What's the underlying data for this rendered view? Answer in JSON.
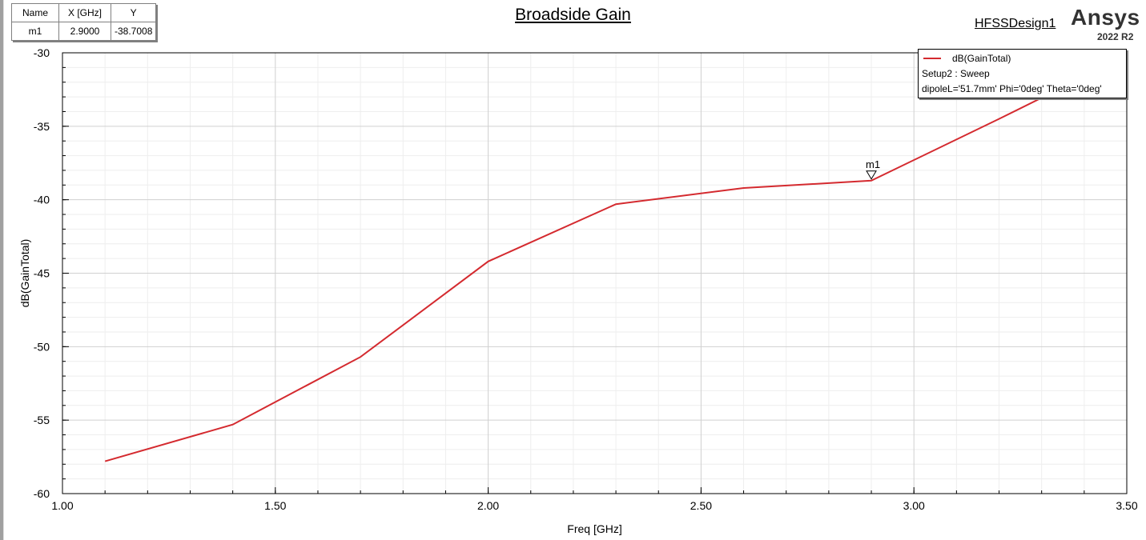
{
  "marker_table": {
    "headers": [
      "Name",
      "X [GHz]",
      "Y"
    ],
    "rows": [
      [
        "m1",
        "2.9000",
        "-38.7008"
      ]
    ]
  },
  "title": "Broadside Gain",
  "design_name": "HFSSDesign1",
  "brand": "Ansys",
  "version": "2022 R2",
  "legend": {
    "series": "dB(GainTotal)",
    "setup": "Setup2 : Sweep",
    "variables": "dipoleL='51.7mm' Phi='0deg' Theta='0deg'"
  },
  "colors": {
    "series": "#d42a2f",
    "grid": "#d0d0d0",
    "minor_grid": "#eeeeee"
  },
  "chart_data": {
    "type": "line",
    "title": "Broadside Gain",
    "xlabel": "Freq [GHz]",
    "ylabel": "dB(GainTotal)",
    "xlim": [
      1.0,
      3.5
    ],
    "ylim": [
      -60,
      -30
    ],
    "x_ticks": [
      "1.00",
      "1.50",
      "2.00",
      "2.50",
      "3.00",
      "3.50"
    ],
    "y_ticks": [
      "-30",
      "-35",
      "-40",
      "-45",
      "-50",
      "-55",
      "-60"
    ],
    "grid": true,
    "legend_position": "top-right",
    "series": [
      {
        "name": "dB(GainTotal)",
        "x": [
          1.1,
          1.4,
          1.7,
          2.0,
          2.3,
          2.6,
          2.9,
          3.2,
          3.5
        ],
        "y": [
          -57.8,
          -55.3,
          -50.7,
          -44.2,
          -40.3,
          -39.2,
          -38.7,
          -34.5,
          -30.2
        ]
      }
    ],
    "markers": [
      {
        "name": "m1",
        "x": 2.9,
        "y": -38.7008
      }
    ]
  }
}
